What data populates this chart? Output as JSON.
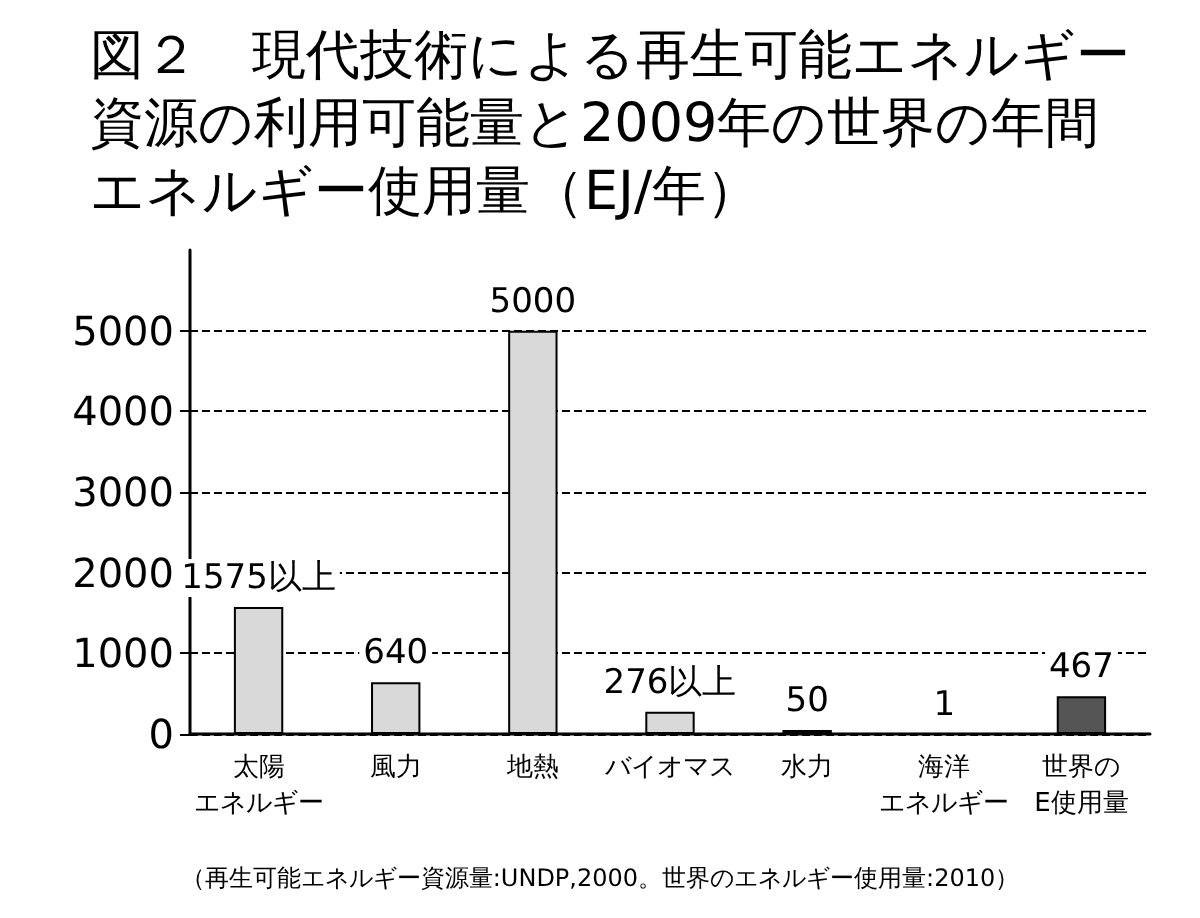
{
  "chart_data": {
    "type": "bar",
    "title": "図２　現代技術による再生可能エネルギー資源の利用可能量と2009年の世界の年間エネルギー使用量（EJ/年）",
    "categories": [
      "太陽エネルギー",
      "風力",
      "地熱",
      "バイオマス",
      "水力",
      "海洋エネルギー",
      "世界のE使用量"
    ],
    "values": [
      1575,
      640,
      5000,
      276,
      50,
      1,
      467
    ],
    "colors": [
      "#d9d9d9",
      "#d9d9d9",
      "#d9d9d9",
      "#d9d9d9",
      "#d9d9d9",
      "#d9d9d9",
      "#555555"
    ],
    "value_labels": [
      "1575以上",
      "640",
      "5000",
      "276以上",
      "50",
      "1",
      "467"
    ],
    "ylim": [
      0,
      6000
    ],
    "yticks": [
      0,
      1000,
      2000,
      3000,
      4000,
      5000
    ],
    "grid": "y",
    "annotations": [
      "（再生可能エネルギー資源量:UNDP,2000。世界のエネルギー使用量:2010）"
    ]
  }
}
